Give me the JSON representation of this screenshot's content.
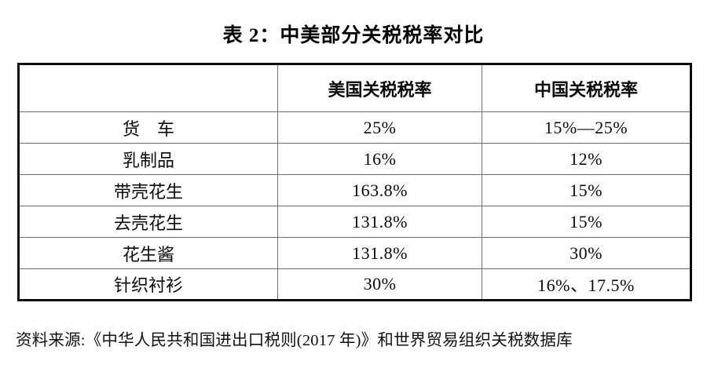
{
  "page": {
    "title": "表 2：中美部分关税税率对比",
    "source_note": "资料来源:《中华人民共和国进出口税则(2017 年)》和世界贸易组织关税数据库"
  },
  "table": {
    "columns": [
      "",
      "美国关税税率",
      "中国关税税率"
    ],
    "rows": [
      {
        "item": "货　车",
        "us_rate": "25%",
        "cn_rate": "15%—25%"
      },
      {
        "item": "乳制品",
        "us_rate": "16%",
        "cn_rate": "12%"
      },
      {
        "item": "带壳花生",
        "us_rate": "163.8%",
        "cn_rate": "15%"
      },
      {
        "item": "去壳花生",
        "us_rate": "131.8%",
        "cn_rate": "15%"
      },
      {
        "item": "花生酱",
        "us_rate": "131.8%",
        "cn_rate": "30%"
      },
      {
        "item": "针织衬衫",
        "us_rate": "30%",
        "cn_rate": "16%、17.5%"
      }
    ]
  },
  "colors": {
    "text": "#0a0a0a",
    "outer_border": "#0d0d0d",
    "inner_border": "#6f6f6f",
    "background": "#ffffff"
  }
}
